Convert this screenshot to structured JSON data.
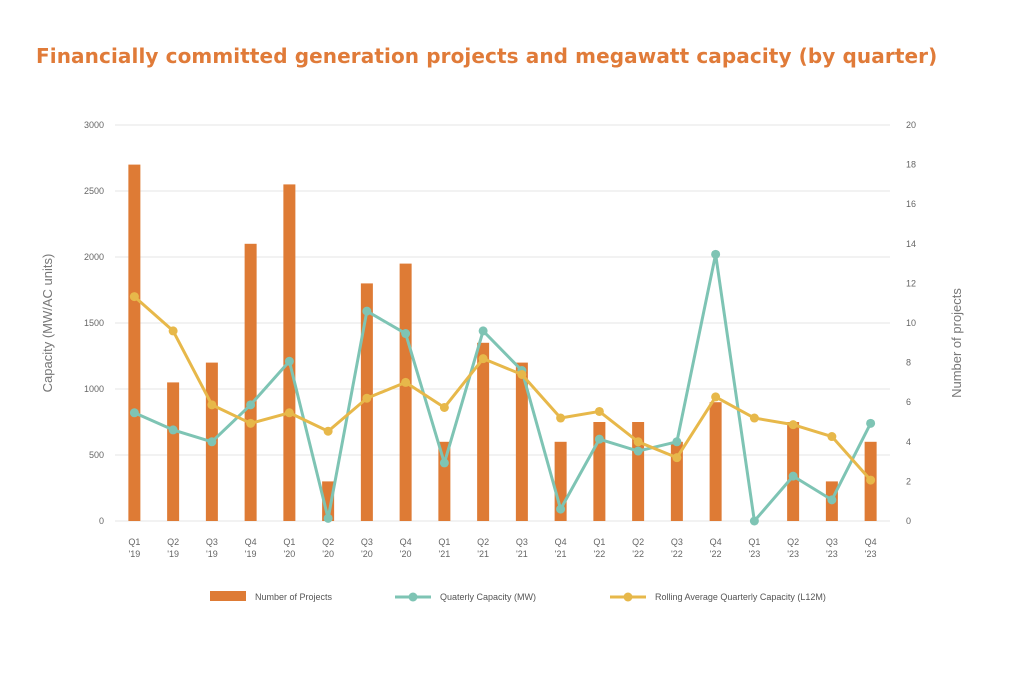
{
  "title": "Financially committed generation projects and megawatt capacity (by quarter)",
  "colors": {
    "title": "#e07b39",
    "bar": "#de7b35",
    "quarterly": "#7ec4b4",
    "rolling": "#e7b84a",
    "grid": "#e6e6e6",
    "tick_text": "#666666"
  },
  "chart_data": {
    "type": "bar+line",
    "categories": [
      [
        "Q1",
        "'19"
      ],
      [
        "Q2",
        "'19"
      ],
      [
        "Q3",
        "'19"
      ],
      [
        "Q4",
        "'19"
      ],
      [
        "Q1",
        "'20"
      ],
      [
        "Q2",
        "'20"
      ],
      [
        "Q3",
        "'20"
      ],
      [
        "Q4",
        "'20"
      ],
      [
        "Q1",
        "'21"
      ],
      [
        "Q2",
        "'21"
      ],
      [
        "Q3",
        "'21"
      ],
      [
        "Q4",
        "'21"
      ],
      [
        "Q1",
        "'22"
      ],
      [
        "Q2",
        "'22"
      ],
      [
        "Q3",
        "'22"
      ],
      [
        "Q4",
        "'22"
      ],
      [
        "Q1",
        "'23"
      ],
      [
        "Q2",
        "'23"
      ],
      [
        "Q3",
        "'23"
      ],
      [
        "Q4",
        "'23"
      ]
    ],
    "series": [
      {
        "name": "Number of Projects",
        "kind": "bar",
        "axis": "right",
        "values": [
          18,
          7,
          8,
          14,
          17,
          2,
          12,
          13,
          4,
          9,
          8,
          4,
          5,
          5,
          4,
          6,
          0,
          5,
          2,
          4
        ]
      },
      {
        "name": "Quaterly Capacity (MW)",
        "kind": "line",
        "axis": "left",
        "values": [
          820,
          690,
          600,
          880,
          1210,
          20,
          1590,
          1420,
          440,
          1440,
          1140,
          90,
          620,
          530,
          600,
          2020,
          0,
          340,
          160,
          740
        ]
      },
      {
        "name": "Rolling Average Quarterly Capacity (L12M)",
        "kind": "line",
        "axis": "left",
        "values": [
          1700,
          1440,
          880,
          740,
          820,
          680,
          930,
          1050,
          860,
          1230,
          1110,
          780,
          830,
          600,
          480,
          940,
          780,
          730,
          640,
          310
        ]
      }
    ],
    "y_left": {
      "label": "Capacity (MW/AC units)",
      "ylim": [
        0,
        3000
      ],
      "ticks": [
        0,
        500,
        1000,
        1500,
        2000,
        2500,
        3000
      ]
    },
    "y_right": {
      "label": "Number of projects",
      "ylim": [
        0,
        20
      ],
      "ticks": [
        0,
        2,
        4,
        6,
        8,
        10,
        12,
        14,
        16,
        18,
        20
      ]
    },
    "grid": true,
    "legend_position": "bottom"
  }
}
